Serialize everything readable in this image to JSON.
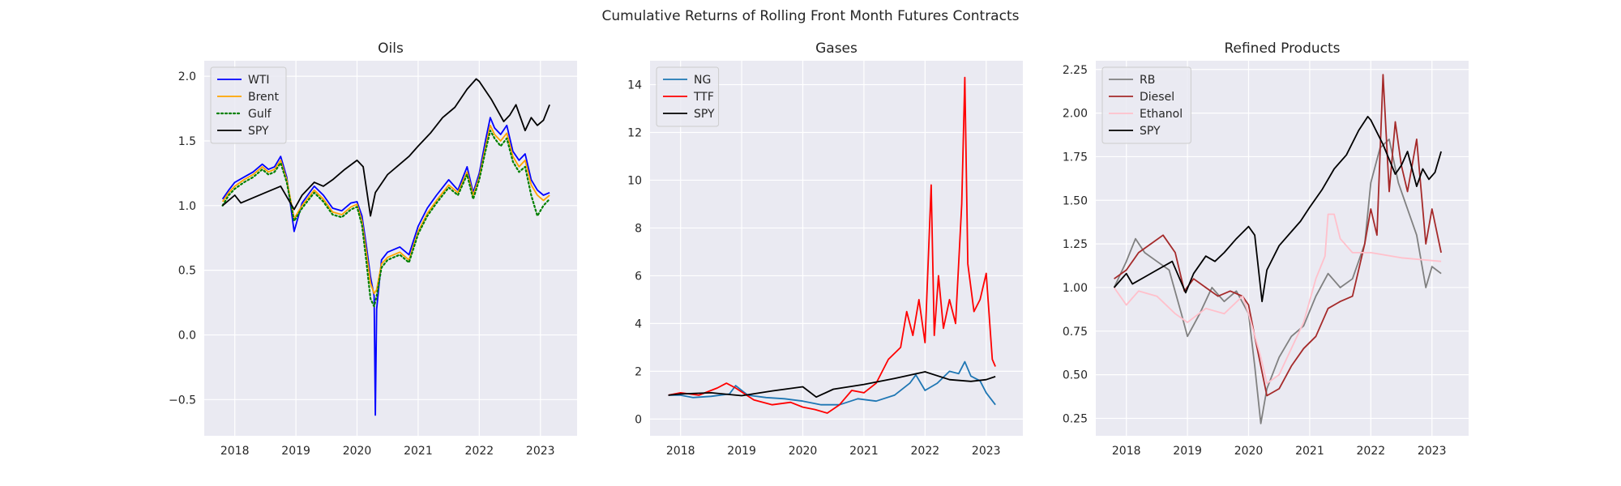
{
  "figure": {
    "suptitle": "Cumulative Returns of Rolling Front Month Futures Contracts",
    "background": "#ffffff",
    "axes_background": "#eaeaf2",
    "grid_color": "#ffffff"
  },
  "chart_data": [
    {
      "type": "line",
      "title": "Oils",
      "xlabel": "",
      "ylabel": "",
      "xlim": [
        2017.5,
        2023.6
      ],
      "ylim": [
        -0.78,
        2.12
      ],
      "x_ticks": [
        2018,
        2019,
        2020,
        2021,
        2022,
        2023
      ],
      "x_tick_labels": [
        "2018",
        "2019",
        "2020",
        "2021",
        "2022",
        "2023"
      ],
      "y_ticks": [
        -0.5,
        0.0,
        0.5,
        1.0,
        1.5,
        2.0
      ],
      "y_tick_labels": [
        "−0.5",
        "0.0",
        "0.5",
        "1.0",
        "1.5",
        "2.0"
      ],
      "grid": true,
      "legend_position": "upper-left",
      "series": [
        {
          "name": "WTI",
          "color": "#0000ff",
          "style": "solid",
          "width": 1.8,
          "x": [
            2017.8,
            2017.9,
            2018.0,
            2018.15,
            2018.3,
            2018.45,
            2018.55,
            2018.65,
            2018.75,
            2018.85,
            2018.97,
            2019.1,
            2019.3,
            2019.45,
            2019.6,
            2019.75,
            2019.9,
            2020.0,
            2020.08,
            2020.15,
            2020.22,
            2020.28,
            2020.3,
            2020.32,
            2020.4,
            2020.5,
            2020.7,
            2020.85,
            2021.0,
            2021.15,
            2021.3,
            2021.5,
            2021.65,
            2021.8,
            2021.9,
            2022.0,
            2022.1,
            2022.18,
            2022.25,
            2022.35,
            2022.45,
            2022.55,
            2022.65,
            2022.75,
            2022.85,
            2022.95,
            2023.05,
            2023.15
          ],
          "y": [
            1.05,
            1.12,
            1.18,
            1.22,
            1.26,
            1.32,
            1.28,
            1.3,
            1.38,
            1.22,
            0.8,
            1.02,
            1.15,
            1.08,
            0.98,
            0.96,
            1.02,
            1.03,
            0.92,
            0.7,
            0.45,
            0.3,
            -0.62,
            0.2,
            0.58,
            0.64,
            0.68,
            0.62,
            0.84,
            0.98,
            1.08,
            1.2,
            1.12,
            1.3,
            1.1,
            1.25,
            1.5,
            1.68,
            1.6,
            1.55,
            1.62,
            1.42,
            1.35,
            1.4,
            1.2,
            1.12,
            1.08,
            1.1
          ]
        },
        {
          "name": "Brent",
          "color": "#ffa500",
          "style": "solid",
          "width": 1.8,
          "x": [
            2017.8,
            2017.9,
            2018.0,
            2018.15,
            2018.3,
            2018.45,
            2018.55,
            2018.65,
            2018.75,
            2018.85,
            2018.97,
            2019.1,
            2019.3,
            2019.45,
            2019.6,
            2019.75,
            2019.9,
            2020.0,
            2020.08,
            2020.15,
            2020.22,
            2020.28,
            2020.32,
            2020.4,
            2020.5,
            2020.7,
            2020.85,
            2021.0,
            2021.15,
            2021.3,
            2021.5,
            2021.65,
            2021.8,
            2021.9,
            2022.0,
            2022.1,
            2022.18,
            2022.25,
            2022.35,
            2022.45,
            2022.55,
            2022.65,
            2022.75,
            2022.85,
            2022.95,
            2023.05,
            2023.15
          ],
          "y": [
            1.03,
            1.1,
            1.15,
            1.2,
            1.24,
            1.3,
            1.26,
            1.28,
            1.35,
            1.2,
            0.9,
            1.0,
            1.12,
            1.05,
            0.95,
            0.93,
            0.99,
            1.01,
            0.88,
            0.65,
            0.4,
            0.32,
            0.35,
            0.55,
            0.6,
            0.64,
            0.58,
            0.8,
            0.94,
            1.04,
            1.16,
            1.1,
            1.26,
            1.08,
            1.22,
            1.45,
            1.62,
            1.55,
            1.5,
            1.56,
            1.38,
            1.3,
            1.35,
            1.16,
            1.08,
            1.04,
            1.08
          ]
        },
        {
          "name": "Gulf",
          "color": "#008000",
          "style": "dotted",
          "width": 2.2,
          "x": [
            2017.8,
            2017.9,
            2018.0,
            2018.15,
            2018.3,
            2018.45,
            2018.55,
            2018.65,
            2018.75,
            2018.85,
            2018.97,
            2019.1,
            2019.3,
            2019.45,
            2019.6,
            2019.75,
            2019.9,
            2020.0,
            2020.08,
            2020.15,
            2020.22,
            2020.28,
            2020.32,
            2020.4,
            2020.5,
            2020.7,
            2020.85,
            2021.0,
            2021.15,
            2021.3,
            2021.5,
            2021.65,
            2021.8,
            2021.9,
            2022.0,
            2022.1,
            2022.18,
            2022.25,
            2022.35,
            2022.45,
            2022.55,
            2022.65,
            2022.75,
            2022.85,
            2022.95,
            2023.05,
            2023.15
          ],
          "y": [
            1.0,
            1.08,
            1.13,
            1.18,
            1.22,
            1.28,
            1.24,
            1.26,
            1.33,
            1.18,
            0.88,
            0.98,
            1.1,
            1.03,
            0.93,
            0.91,
            0.97,
            0.99,
            0.85,
            0.58,
            0.28,
            0.22,
            0.3,
            0.52,
            0.58,
            0.62,
            0.56,
            0.78,
            0.92,
            1.02,
            1.14,
            1.08,
            1.24,
            1.05,
            1.2,
            1.42,
            1.58,
            1.52,
            1.46,
            1.52,
            1.34,
            1.26,
            1.3,
            1.08,
            0.92,
            1.0,
            1.05
          ]
        },
        {
          "name": "SPY",
          "color": "#000000",
          "style": "solid",
          "width": 1.8,
          "x": [
            2017.8,
            2018.0,
            2018.1,
            2018.3,
            2018.5,
            2018.75,
            2018.97,
            2019.1,
            2019.3,
            2019.45,
            2019.6,
            2019.8,
            2020.0,
            2020.1,
            2020.22,
            2020.3,
            2020.5,
            2020.7,
            2020.85,
            2021.0,
            2021.2,
            2021.4,
            2021.6,
            2021.8,
            2021.95,
            2022.0,
            2022.2,
            2022.4,
            2022.5,
            2022.6,
            2022.75,
            2022.85,
            2022.95,
            2023.05,
            2023.15
          ],
          "y": [
            1.0,
            1.08,
            1.02,
            1.06,
            1.1,
            1.15,
            0.97,
            1.08,
            1.18,
            1.15,
            1.2,
            1.28,
            1.35,
            1.3,
            0.92,
            1.1,
            1.24,
            1.32,
            1.38,
            1.46,
            1.56,
            1.68,
            1.76,
            1.9,
            1.98,
            1.96,
            1.82,
            1.65,
            1.7,
            1.78,
            1.58,
            1.68,
            1.62,
            1.66,
            1.78
          ]
        }
      ]
    },
    {
      "type": "line",
      "title": "Gases",
      "xlabel": "",
      "ylabel": "",
      "xlim": [
        2017.5,
        2023.6
      ],
      "ylim": [
        -0.7,
        15.0
      ],
      "x_ticks": [
        2018,
        2019,
        2020,
        2021,
        2022,
        2023
      ],
      "x_tick_labels": [
        "2018",
        "2019",
        "2020",
        "2021",
        "2022",
        "2023"
      ],
      "y_ticks": [
        0,
        2,
        4,
        6,
        8,
        10,
        12,
        14
      ],
      "y_tick_labels": [
        "0",
        "2",
        "4",
        "6",
        "8",
        "10",
        "12",
        "14"
      ],
      "grid": true,
      "legend_position": "upper-left",
      "series": [
        {
          "name": "NG",
          "color": "#1f77b4",
          "style": "solid",
          "width": 1.8,
          "x": [
            2017.8,
            2018.0,
            2018.2,
            2018.5,
            2018.8,
            2018.9,
            2019.1,
            2019.4,
            2019.7,
            2020.0,
            2020.3,
            2020.6,
            2020.9,
            2021.2,
            2021.5,
            2021.75,
            2021.85,
            2022.0,
            2022.2,
            2022.4,
            2022.55,
            2022.65,
            2022.75,
            2022.9,
            2023.0,
            2023.15
          ],
          "y": [
            1.0,
            1.0,
            0.9,
            0.95,
            1.05,
            1.4,
            1.0,
            0.9,
            0.85,
            0.75,
            0.6,
            0.6,
            0.85,
            0.75,
            1.0,
            1.5,
            1.85,
            1.2,
            1.5,
            2.0,
            1.9,
            2.4,
            1.8,
            1.6,
            1.1,
            0.6
          ]
        },
        {
          "name": "TTF",
          "color": "#ff0000",
          "style": "solid",
          "width": 1.8,
          "x": [
            2017.8,
            2018.0,
            2018.3,
            2018.6,
            2018.75,
            2018.9,
            2019.2,
            2019.5,
            2019.8,
            2020.0,
            2020.2,
            2020.4,
            2020.6,
            2020.8,
            2021.0,
            2021.2,
            2021.4,
            2021.6,
            2021.7,
            2021.8,
            2021.9,
            2022.0,
            2022.1,
            2022.15,
            2022.22,
            2022.3,
            2022.4,
            2022.5,
            2022.6,
            2022.65,
            2022.7,
            2022.8,
            2022.9,
            2023.0,
            2023.1,
            2023.15
          ],
          "y": [
            1.0,
            1.1,
            1.0,
            1.3,
            1.5,
            1.3,
            0.8,
            0.6,
            0.7,
            0.5,
            0.4,
            0.25,
            0.6,
            1.2,
            1.1,
            1.5,
            2.5,
            3.0,
            4.5,
            3.5,
            5.0,
            3.2,
            9.8,
            3.5,
            6.0,
            3.8,
            5.0,
            4.0,
            9.0,
            14.3,
            6.5,
            4.5,
            5.0,
            6.1,
            2.5,
            2.2
          ]
        },
        {
          "name": "SPY",
          "color": "#000000",
          "style": "solid",
          "width": 1.8,
          "x": [
            2017.8,
            2018.0,
            2018.5,
            2019.0,
            2019.5,
            2020.0,
            2020.22,
            2020.5,
            2021.0,
            2021.5,
            2022.0,
            2022.4,
            2022.75,
            2023.0,
            2023.15
          ],
          "y": [
            1.0,
            1.05,
            1.1,
            0.98,
            1.18,
            1.35,
            0.92,
            1.25,
            1.45,
            1.7,
            1.98,
            1.65,
            1.58,
            1.65,
            1.78
          ]
        }
      ]
    },
    {
      "type": "line",
      "title": "Refined Products",
      "xlabel": "",
      "ylabel": "",
      "xlim": [
        2017.5,
        2023.6
      ],
      "ylim": [
        0.15,
        2.3
      ],
      "x_ticks": [
        2018,
        2019,
        2020,
        2021,
        2022,
        2023
      ],
      "x_tick_labels": [
        "2018",
        "2019",
        "2020",
        "2021",
        "2022",
        "2023"
      ],
      "y_ticks": [
        0.25,
        0.5,
        0.75,
        1.0,
        1.25,
        1.5,
        1.75,
        2.0,
        2.25
      ],
      "y_tick_labels": [
        "0.25",
        "0.50",
        "0.75",
        "1.00",
        "1.25",
        "1.50",
        "1.75",
        "2.00",
        "2.25"
      ],
      "grid": true,
      "legend_position": "upper-left",
      "series": [
        {
          "name": "RB",
          "color": "#808080",
          "style": "solid",
          "width": 1.8,
          "x": [
            2017.8,
            2018.0,
            2018.15,
            2018.3,
            2018.5,
            2018.7,
            2018.9,
            2019.0,
            2019.2,
            2019.4,
            2019.6,
            2019.8,
            2020.0,
            2020.1,
            2020.2,
            2020.3,
            2020.5,
            2020.7,
            2020.9,
            2021.1,
            2021.3,
            2021.5,
            2021.7,
            2021.9,
            2022.0,
            2022.15,
            2022.3,
            2022.45,
            2022.6,
            2022.75,
            2022.9,
            2023.0,
            2023.15
          ],
          "y": [
            1.0,
            1.15,
            1.28,
            1.2,
            1.15,
            1.1,
            0.85,
            0.72,
            0.85,
            1.0,
            0.92,
            0.98,
            0.85,
            0.55,
            0.22,
            0.42,
            0.6,
            0.72,
            0.78,
            0.95,
            1.08,
            1.0,
            1.05,
            1.25,
            1.6,
            1.8,
            1.85,
            1.6,
            1.45,
            1.3,
            1.0,
            1.12,
            1.08
          ]
        },
        {
          "name": "Diesel",
          "color": "#a52a2a",
          "style": "solid",
          "width": 1.8,
          "x": [
            2017.8,
            2018.0,
            2018.2,
            2018.4,
            2018.6,
            2018.8,
            2018.95,
            2019.1,
            2019.3,
            2019.5,
            2019.7,
            2019.9,
            2020.0,
            2020.1,
            2020.2,
            2020.3,
            2020.5,
            2020.7,
            2020.9,
            2021.1,
            2021.3,
            2021.5,
            2021.7,
            2021.9,
            2022.0,
            2022.1,
            2022.2,
            2022.3,
            2022.4,
            2022.5,
            2022.6,
            2022.75,
            2022.9,
            2023.0,
            2023.15
          ],
          "y": [
            1.05,
            1.1,
            1.2,
            1.25,
            1.3,
            1.2,
            0.98,
            1.05,
            1.0,
            0.95,
            0.98,
            0.95,
            0.9,
            0.72,
            0.55,
            0.38,
            0.42,
            0.55,
            0.65,
            0.72,
            0.88,
            0.92,
            0.95,
            1.25,
            1.45,
            1.3,
            2.22,
            1.55,
            1.95,
            1.7,
            1.55,
            1.85,
            1.25,
            1.45,
            1.2
          ]
        },
        {
          "name": "Ethanol",
          "color": "#ffc0cb",
          "style": "solid",
          "width": 1.8,
          "x": [
            2017.8,
            2018.0,
            2018.2,
            2018.5,
            2018.8,
            2019.0,
            2019.3,
            2019.6,
            2019.9,
            2020.0,
            2020.2,
            2020.3,
            2020.5,
            2020.7,
            2020.9,
            2021.1,
            2021.25,
            2021.3,
            2021.4,
            2021.5,
            2021.7,
            2022.0,
            2022.5,
            2023.15
          ],
          "y": [
            1.0,
            0.9,
            0.98,
            0.95,
            0.85,
            0.8,
            0.88,
            0.85,
            0.95,
            0.85,
            0.6,
            0.45,
            0.5,
            0.65,
            0.8,
            1.05,
            1.18,
            1.42,
            1.42,
            1.28,
            1.2,
            1.2,
            1.17,
            1.15
          ]
        },
        {
          "name": "SPY",
          "color": "#000000",
          "style": "solid",
          "width": 1.8,
          "x": [
            2017.8,
            2018.0,
            2018.1,
            2018.3,
            2018.5,
            2018.75,
            2018.97,
            2019.1,
            2019.3,
            2019.45,
            2019.6,
            2019.8,
            2020.0,
            2020.1,
            2020.22,
            2020.3,
            2020.5,
            2020.7,
            2020.85,
            2021.0,
            2021.2,
            2021.4,
            2021.6,
            2021.8,
            2021.95,
            2022.0,
            2022.2,
            2022.4,
            2022.5,
            2022.6,
            2022.75,
            2022.85,
            2022.95,
            2023.05,
            2023.15
          ],
          "y": [
            1.0,
            1.08,
            1.02,
            1.06,
            1.1,
            1.15,
            0.97,
            1.08,
            1.18,
            1.15,
            1.2,
            1.28,
            1.35,
            1.3,
            0.92,
            1.1,
            1.24,
            1.32,
            1.38,
            1.46,
            1.56,
            1.68,
            1.76,
            1.9,
            1.98,
            1.96,
            1.82,
            1.65,
            1.7,
            1.78,
            1.58,
            1.68,
            1.62,
            1.66,
            1.78
          ]
        }
      ]
    }
  ]
}
